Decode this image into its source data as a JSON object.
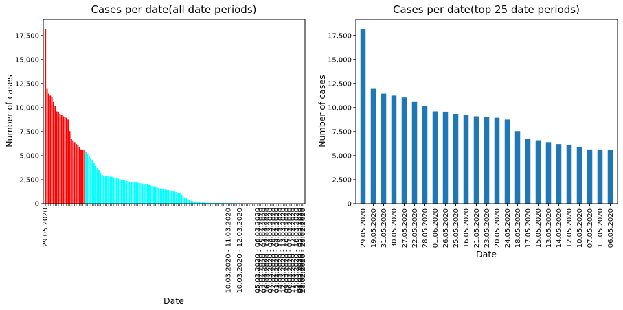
{
  "chart_data": [
    {
      "type": "bar",
      "title": "Cases per date(all date periods)",
      "xlabel": "Date",
      "ylabel": "Number of cases",
      "ylim": [
        0,
        19200
      ],
      "yticks": [
        0,
        2500,
        5000,
        7500,
        10000,
        12500,
        15000,
        17500
      ],
      "colors": {
        "top": "#ff0000",
        "rest": "#00ffff"
      },
      "top_count": 25,
      "visible_tick_labels": [
        {
          "index": 0,
          "label": "29.05.2020"
        },
        {
          "index": 113,
          "label": "10.03.2020 - 11.03.2020"
        },
        {
          "index": 120,
          "label": "10.03.2020 - 12.03.2020"
        },
        {
          "index": 131,
          "label": "05.03.2020 - 06.03.2020"
        },
        {
          "index": 133,
          "label": "25.02.2020 - 26.02.2020"
        },
        {
          "index": 135,
          "label": "02.03.2020 - 03.03.2020"
        },
        {
          "index": 137,
          "label": "16.03.2020 - 17.03.2020"
        },
        {
          "index": 139,
          "label": "07.03.2020 - 08.03.2020"
        },
        {
          "index": 141,
          "label": "27.02.2020 - 28.02.2020"
        },
        {
          "index": 143,
          "label": "03.03.2020 - 04.03.2020"
        },
        {
          "index": 145,
          "label": "14.03.2020 - 15.03.2020"
        },
        {
          "index": 147,
          "label": "12.03.2020 - 13.03.2020"
        },
        {
          "index": 149,
          "label": "09.03.2020 - 10.03.2020"
        },
        {
          "index": 151,
          "label": "06.03.2020 - 07.03.2020"
        },
        {
          "index": 153,
          "label": "11.03.2020 - 12.03.2020"
        },
        {
          "index": 155,
          "label": "15.03.2020 - 16.03.2020"
        },
        {
          "index": 157,
          "label": "04.03.2020 - 05.03.2020"
        },
        {
          "index": 158,
          "label": "01.03.2020 - 02.03.2020"
        },
        {
          "index": 159,
          "label": "28.02.2020 - 29.02.2020"
        }
      ],
      "values": [
        18200,
        11950,
        11450,
        11250,
        11050,
        10650,
        10200,
        9600,
        9570,
        9350,
        9250,
        9100,
        9000,
        8950,
        8750,
        7550,
        6750,
        6600,
        6400,
        6200,
        6100,
        5900,
        5650,
        5580,
        5570,
        5400,
        5200,
        5000,
        4750,
        4500,
        4200,
        3950,
        3700,
        3500,
        3200,
        3000,
        2950,
        2900,
        2880,
        2850,
        2820,
        2800,
        2750,
        2700,
        2650,
        2600,
        2550,
        2500,
        2450,
        2400,
        2380,
        2350,
        2300,
        2280,
        2250,
        2220,
        2200,
        2180,
        2150,
        2120,
        2100,
        2080,
        2050,
        2000,
        1950,
        1900,
        1850,
        1800,
        1750,
        1700,
        1650,
        1600,
        1550,
        1500,
        1480,
        1450,
        1420,
        1400,
        1350,
        1300,
        1250,
        1200,
        1150,
        1100,
        950,
        800,
        650,
        550,
        450,
        380,
        300,
        250,
        200,
        180,
        160,
        150,
        140,
        130,
        120,
        110,
        100,
        95,
        90,
        85,
        80,
        78,
        76,
        74,
        72,
        70,
        68,
        66,
        64,
        62,
        60,
        58,
        56,
        54,
        52,
        50,
        48,
        46,
        44,
        42,
        40,
        38,
        36,
        34,
        32,
        30,
        28,
        26,
        24,
        22,
        20,
        18,
        16,
        15,
        14,
        13,
        12,
        11,
        10,
        9,
        8,
        7,
        6,
        5,
        5,
        4,
        4,
        3,
        3,
        2,
        2,
        2,
        1,
        1,
        1,
        1
      ]
    },
    {
      "type": "bar",
      "title": "Cases per date(top 25 date periods)",
      "xlabel": "Date",
      "ylabel": "Number of cases",
      "ylim": [
        0,
        19200
      ],
      "yticks": [
        0,
        2500,
        5000,
        7500,
        10000,
        12500,
        15000,
        17500
      ],
      "color": "#1f77b4",
      "categories": [
        "29.05.2020",
        "19.05.2020",
        "31.05.2020",
        "30.05.2020",
        "27.05.2020",
        "22.05.2020",
        "28.05.2020",
        "01.06.2020",
        "26.05.2020",
        "25.05.2020",
        "16.05.2020",
        "21.05.2020",
        "23.05.2020",
        "20.05.2020",
        "24.05.2020",
        "18.05.2020",
        "17.05.2020",
        "15.05.2020",
        "13.05.2020",
        "14.05.2020",
        "12.05.2020",
        "10.05.2020",
        "07.05.2020",
        "11.05.2020",
        "06.05.2020"
      ],
      "values": [
        18200,
        11950,
        11450,
        11250,
        11050,
        10650,
        10200,
        9600,
        9570,
        9350,
        9250,
        9100,
        9000,
        8950,
        8750,
        7550,
        6750,
        6600,
        6400,
        6200,
        6100,
        5900,
        5650,
        5580,
        5570
      ]
    }
  ]
}
